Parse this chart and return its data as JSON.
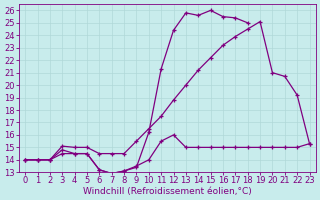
{
  "bg_color": "#c8ecec",
  "line_color": "#800080",
  "grid_color": "#b0d8d8",
  "xlabel": "Windchill (Refroidissement éolien,°C)",
  "xlabel_fontsize": 6.5,
  "tick_fontsize": 6,
  "xlim": [
    -0.5,
    23.5
  ],
  "ylim": [
    13,
    26.5
  ],
  "yticks": [
    13,
    14,
    15,
    16,
    17,
    18,
    19,
    20,
    21,
    22,
    23,
    24,
    25,
    26
  ],
  "xticks": [
    0,
    1,
    2,
    3,
    4,
    5,
    6,
    7,
    8,
    9,
    10,
    11,
    12,
    13,
    14,
    15,
    16,
    17,
    18,
    19,
    20,
    21,
    22,
    23
  ],
  "curve1_x": [
    0,
    1,
    2,
    3,
    4,
    5,
    6,
    7,
    8,
    9,
    10,
    11,
    12,
    13,
    14,
    15,
    16,
    17,
    18
  ],
  "curve1_y": [
    14,
    14,
    14,
    14.8,
    14.5,
    14.5,
    13.2,
    12.9,
    13.1,
    13.4,
    16.2,
    21.3,
    24.4,
    25.8,
    25.6,
    26.0,
    25.5,
    25.4,
    25.0
  ],
  "curve2_x": [
    0,
    1,
    2,
    3,
    4,
    5,
    6,
    7,
    8,
    9,
    10,
    11,
    12,
    13,
    14,
    15,
    16,
    17,
    18,
    19,
    20,
    21,
    22,
    23
  ],
  "curve2_y": [
    14,
    14,
    14,
    15.1,
    15.0,
    15.0,
    14.5,
    14.5,
    14.5,
    15.5,
    16.5,
    17.5,
    18.8,
    20.0,
    21.2,
    22.2,
    23.2,
    23.9,
    24.5,
    25.1,
    21.0,
    20.7,
    19.2,
    15.3
  ],
  "curve3_x": [
    0,
    1,
    2,
    3,
    4,
    5,
    6,
    7,
    8,
    9,
    10,
    11,
    12,
    13,
    14,
    15,
    16,
    17,
    18,
    19,
    20,
    21,
    22,
    23
  ],
  "curve3_y": [
    14,
    14,
    14,
    14.5,
    14.5,
    14.5,
    13.2,
    12.9,
    13.1,
    13.5,
    14.0,
    15.5,
    16.0,
    15.0,
    15.0,
    15.0,
    15.0,
    15.0,
    15.0,
    15.0,
    15.0,
    15.0,
    15.0,
    15.3
  ]
}
